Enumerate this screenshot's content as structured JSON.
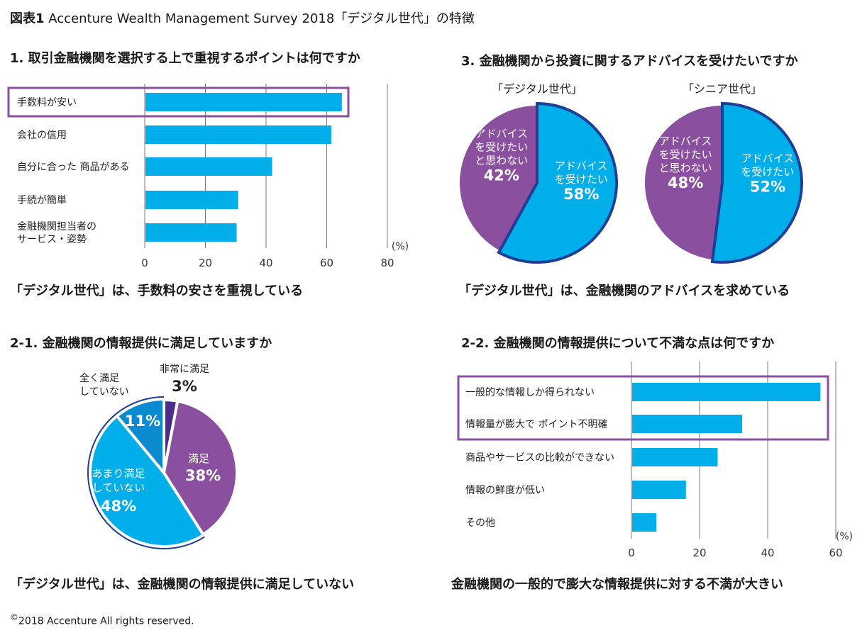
{
  "figure": {
    "label": "図表1",
    "title": "Accenture Wealth Management Survey 2018「デジタル世代」の特徴"
  },
  "colors": {
    "bar": "#00AEEA",
    "purple": "#8B4F9F",
    "dark_purple": "#4B2D8B",
    "mid_blue": "#0A8BD0",
    "light_blue": "#00AEEA",
    "outline_blue": "#1E3F96",
    "highlight_box": "#8A4FA0",
    "gridline": "#777777"
  },
  "sections": {
    "s1": {
      "title": "1. 取引金融機関を選択する上で重視するポイントは何ですか",
      "caption": "「デジタル世代」は、手数料の安さを重視している"
    },
    "s3": {
      "title": "3. 金融機関から投資に関するアドバイスを受けたいですか",
      "caption": "「デジタル世代」は、金融機関のアドバイスを求めている"
    },
    "s21": {
      "title": "2-1. 金融機関の情報提供に満足していますか",
      "caption": "「デジタル世代」は、金融機関の情報提供に満足していない"
    },
    "s22": {
      "title": "2-2. 金融機関の情報提供について不満な点は何ですか",
      "caption": "金融機関の一般的で膨大な情報提供に対する不満が大きい"
    }
  },
  "copyright": {
    "symbol": "©",
    "text": "2018 Accenture All rights reserved."
  },
  "chart_data": [
    {
      "id": "chart1",
      "type": "bar",
      "orientation": "horizontal",
      "title": "1. 取引金融機関を選択する上で重視するポイントは何ですか",
      "categories": [
        "手数料が安い",
        "会社の信用",
        "自分に合った 商品がある",
        "手続が簡単",
        "金融機関担当者の\nサービス・姿勢"
      ],
      "values": [
        65,
        61.5,
        42,
        30.8,
        30.3
      ],
      "highlighted": [
        0
      ],
      "xlabel": "(%)",
      "xlim": [
        0,
        80
      ],
      "xticks": [
        0,
        20,
        40,
        60,
        80
      ],
      "grid": true
    },
    {
      "id": "chart3a",
      "type": "pie",
      "title": "「デジタル世代」",
      "slices": [
        {
          "label": "アドバイスを受けたい",
          "label_lines": [
            "アドバイス",
            "を受けたい"
          ],
          "value": 58,
          "display": "58%",
          "color": "#00AEEA",
          "outlined": true
        },
        {
          "label": "アドバイスを受けたいと思わない",
          "label_lines": [
            "アドバイス",
            "を受けたい",
            "と思わない"
          ],
          "value": 42,
          "display": "42%",
          "color": "#8B4F9F"
        }
      ]
    },
    {
      "id": "chart3b",
      "type": "pie",
      "title": "「シニア世代」",
      "slices": [
        {
          "label": "アドバイスを受けたい",
          "label_lines": [
            "アドバイス",
            "を受けたい"
          ],
          "value": 52,
          "display": "52%",
          "color": "#00AEEA",
          "outlined": true
        },
        {
          "label": "アドバイスを受けたいと思わない",
          "label_lines": [
            "アドバイス",
            "を受けたい",
            "と思わない"
          ],
          "value": 48,
          "display": "48%",
          "color": "#8B4F9F"
        }
      ]
    },
    {
      "id": "chart21",
      "type": "pie",
      "title": "2-1. 金融機関の情報提供に満足していますか",
      "slices": [
        {
          "label": "非常に満足",
          "label_lines": [
            "非常に満足"
          ],
          "value": 3,
          "display": "3%",
          "color": "#4B2D8B"
        },
        {
          "label": "満足",
          "label_lines": [
            "満足"
          ],
          "value": 38,
          "display": "38%",
          "color": "#8B4F9F"
        },
        {
          "label": "あまり満足していない",
          "label_lines": [
            "あまり満足",
            "していない"
          ],
          "value": 48,
          "display": "48%",
          "color": "#00AEEA",
          "outlined": true
        },
        {
          "label": "全く満足していない",
          "label_lines": [
            "全く満足",
            "していない"
          ],
          "value": 11,
          "display": "11%",
          "color": "#0A8BD0",
          "outlined": true
        }
      ]
    },
    {
      "id": "chart22",
      "type": "bar",
      "orientation": "horizontal",
      "title": "2-2. 金融機関の情報提供について不満な点は何ですか",
      "categories": [
        "一般的な情報しか得られない",
        "情報量が膨大で ポイント不明確",
        "商品やサービスの比較ができない",
        "情報の鮮度が低い",
        "その他"
      ],
      "values": [
        55.5,
        32.5,
        25.3,
        16,
        7.3
      ],
      "highlighted": [
        0,
        1
      ],
      "xlabel": "(%)",
      "xlim": [
        0,
        60
      ],
      "xticks": [
        0,
        20,
        40,
        60
      ],
      "grid": true
    }
  ]
}
